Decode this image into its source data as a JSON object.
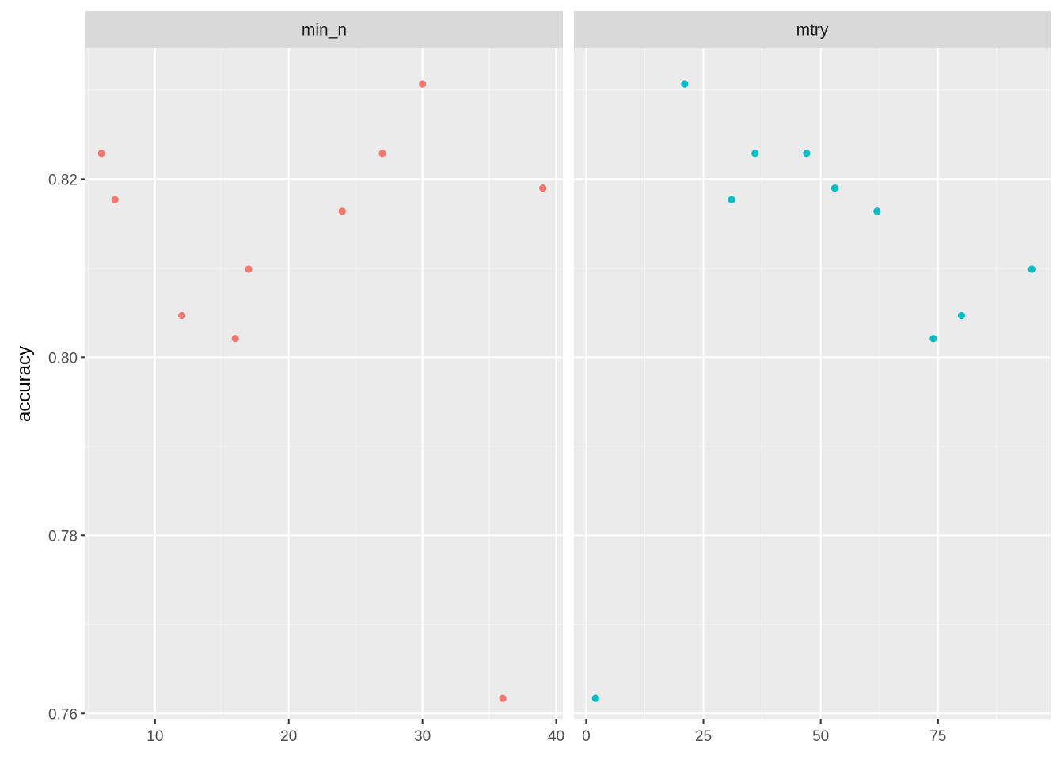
{
  "chart_data": {
    "type": "scatter",
    "ylabel": "accuracy",
    "xlabel": "",
    "ylim": [
      0.7594,
      0.8347
    ],
    "y_ticks": [
      0.76,
      0.78,
      0.8,
      0.82
    ],
    "y_tick_labels": [
      "0.76",
      "0.78",
      "0.80",
      "0.82"
    ],
    "grid": true,
    "legend": "none",
    "panels": [
      {
        "name": "min_n",
        "color": "#F8766D",
        "xlim": [
          4.8,
          40.5
        ],
        "x_ticks": [
          10,
          20,
          30,
          40
        ],
        "x_tick_labels": [
          "10",
          "20",
          "30",
          "40"
        ],
        "x_minor": [
          5,
          15,
          25,
          35
        ],
        "points": [
          {
            "x": 6,
            "y": 0.8229
          },
          {
            "x": 7,
            "y": 0.8177
          },
          {
            "x": 12,
            "y": 0.8047
          },
          {
            "x": 16,
            "y": 0.8021
          },
          {
            "x": 17,
            "y": 0.8099
          },
          {
            "x": 24,
            "y": 0.8164
          },
          {
            "x": 27,
            "y": 0.8229
          },
          {
            "x": 30,
            "y": 0.8307
          },
          {
            "x": 36,
            "y": 0.7617
          },
          {
            "x": 39,
            "y": 0.819
          }
        ]
      },
      {
        "name": "mtry",
        "color": "#00BFC4",
        "xlim": [
          -2.6,
          99.0
        ],
        "x_ticks": [
          0,
          25,
          50,
          75
        ],
        "x_tick_labels": [
          "0",
          "25",
          "50",
          "75"
        ],
        "x_minor": [
          12.5,
          37.5,
          62.5,
          87.5
        ],
        "points": [
          {
            "x": 2,
            "y": 0.7617
          },
          {
            "x": 21,
            "y": 0.8307
          },
          {
            "x": 31,
            "y": 0.8177
          },
          {
            "x": 36,
            "y": 0.8229
          },
          {
            "x": 47,
            "y": 0.8229
          },
          {
            "x": 53,
            "y": 0.819
          },
          {
            "x": 62,
            "y": 0.8164
          },
          {
            "x": 74,
            "y": 0.8021
          },
          {
            "x": 80,
            "y": 0.8047
          },
          {
            "x": 95,
            "y": 0.8099
          }
        ]
      }
    ]
  }
}
